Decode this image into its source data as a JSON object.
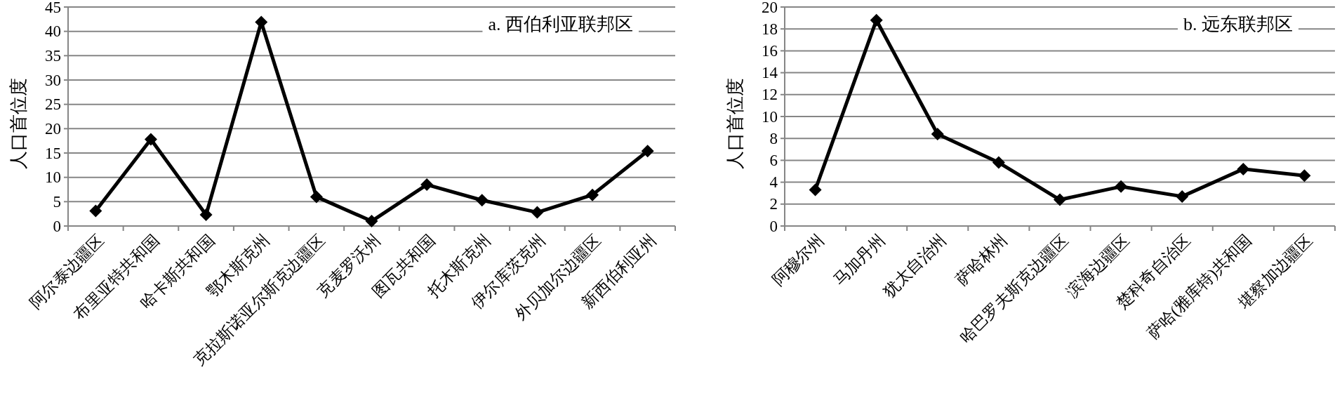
{
  "chart_data": [
    {
      "type": "line",
      "title": "a. 西伯利亚联邦区",
      "ylabel": "人口首位度",
      "categories": [
        "阿尔泰边疆区",
        "布里亚特共和国",
        "哈卡斯共和国",
        "鄂木斯克州",
        "克拉斯诺亚尔斯克边疆区",
        "克麦罗沃州",
        "图瓦共和国",
        "托木斯克州",
        "伊尔库茨克州",
        "外贝加尔边疆区",
        "新西伯利亚州"
      ],
      "series": [
        {
          "color": "#000000",
          "values": [
            3.1,
            17.8,
            2.3,
            41.9,
            6.0,
            1.0,
            8.5,
            5.3,
            2.8,
            6.4,
            15.4
          ]
        }
      ],
      "ylim": [
        0,
        45
      ],
      "yticks": [
        0,
        5,
        10,
        15,
        20,
        25,
        30,
        35,
        40,
        45
      ],
      "grid": "y",
      "marker": "diamond",
      "line_style": "solid"
    },
    {
      "type": "line",
      "title": "b. 远东联邦区",
      "ylabel": "人口首位度",
      "categories": [
        "阿穆尔州",
        "马加丹州",
        "犹太自治州",
        "萨哈林州",
        "哈巴罗夫斯克边疆区",
        "滨海边疆区",
        "楚科奇自治区",
        "萨哈(雅库特)共和国",
        "堪察加边疆区"
      ],
      "series": [
        {
          "color": "#000000",
          "values": [
            3.3,
            18.8,
            8.4,
            5.8,
            2.4,
            3.6,
            2.7,
            5.2,
            4.6
          ]
        }
      ],
      "ylim": [
        0,
        20
      ],
      "yticks": [
        0,
        2,
        4,
        6,
        8,
        10,
        12,
        14,
        16,
        18,
        20
      ],
      "grid": "y",
      "marker": "diamond",
      "line_style": "solid"
    }
  ]
}
